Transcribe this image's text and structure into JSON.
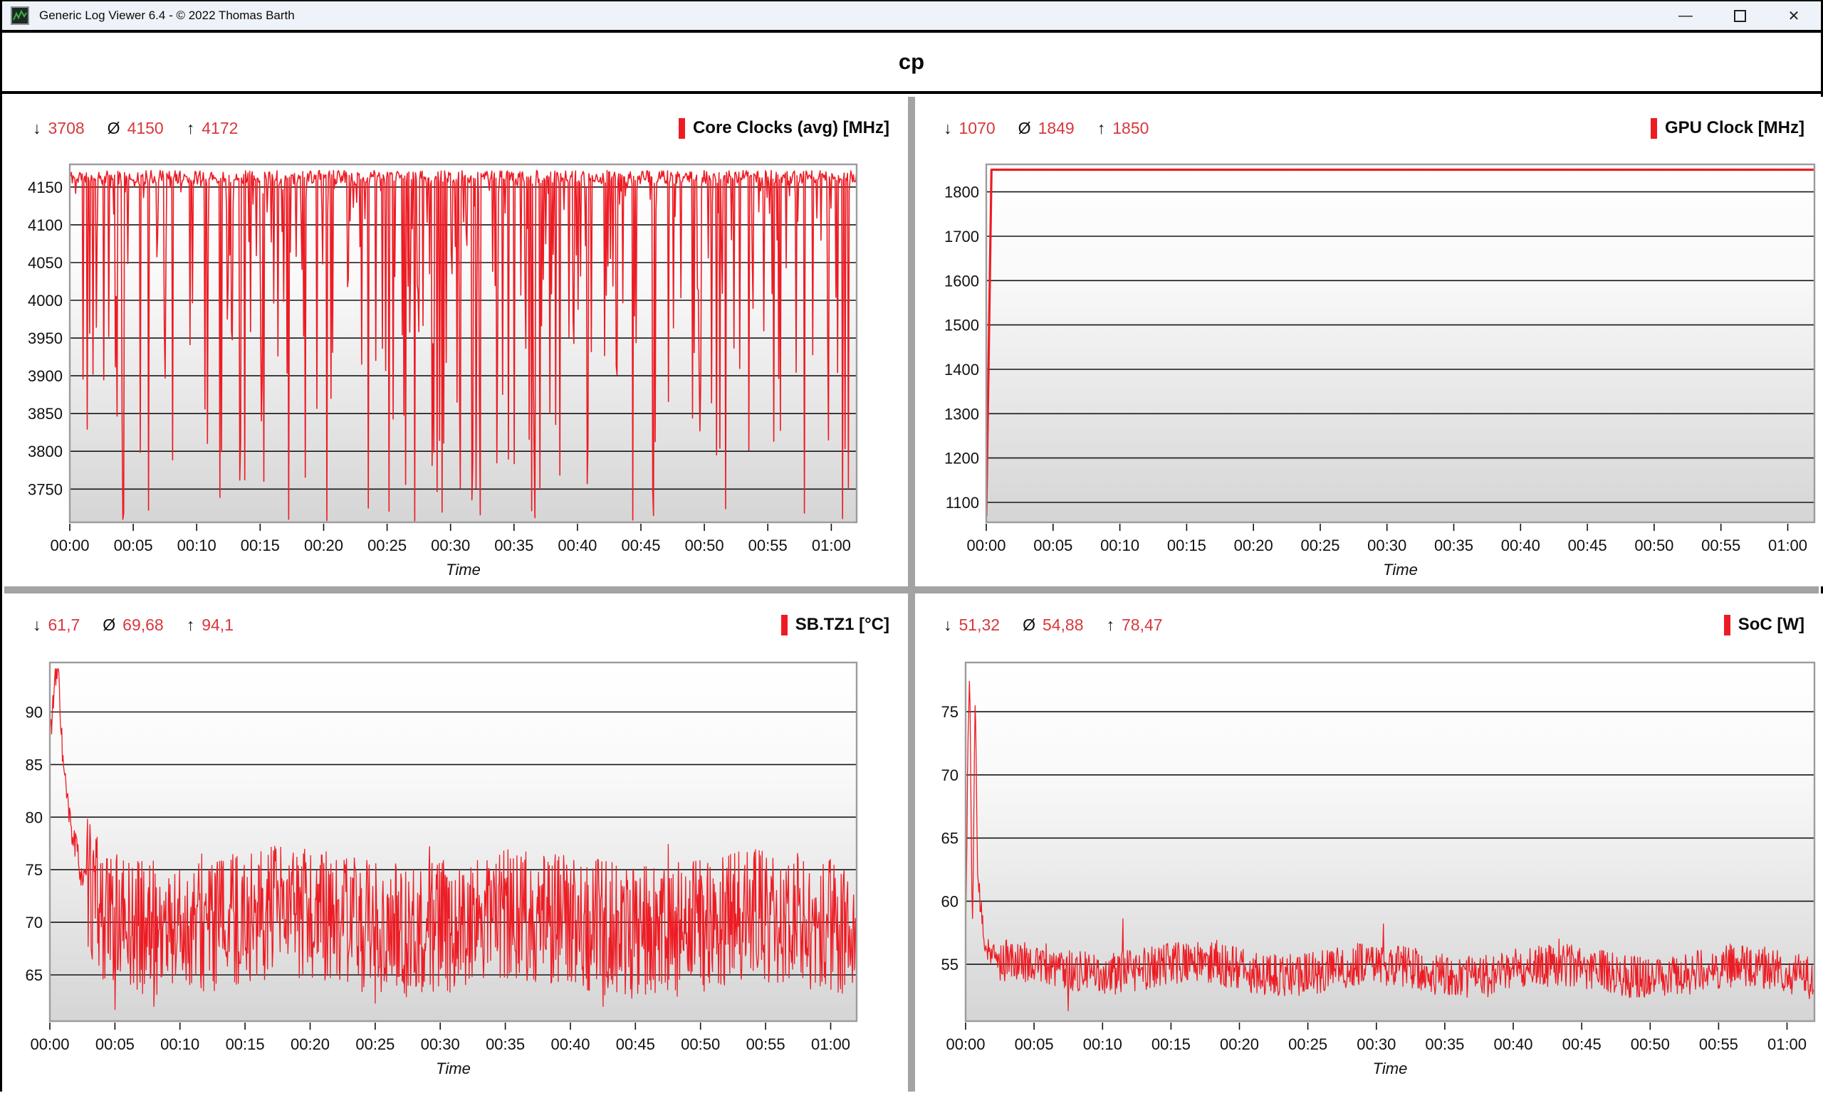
{
  "window": {
    "title": "Generic Log Viewer 6.4 - © 2022 Thomas Barth",
    "minimize_label": "—",
    "maximize_label": "□",
    "close_label": "✕"
  },
  "page_title": "cp",
  "stat_symbols": {
    "min": "↓",
    "avg": "Ø",
    "max": "↑"
  },
  "colors": {
    "series_red": "#ed1c24",
    "stats_red": "#d8383c",
    "grid_line": "#161616",
    "plot_border": "#9c9c9c",
    "plot_bg_top": "#ffffff",
    "plot_bg_bottom": "#d5d5d5",
    "panel_divider": "#a3a3a3",
    "titlebar_bg": "#eef3fa"
  },
  "x_axis": {
    "tick_labels": [
      "00:00",
      "00:05",
      "00:10",
      "00:15",
      "00:20",
      "00:25",
      "00:30",
      "00:35",
      "00:40",
      "00:45",
      "00:50",
      "00:55",
      "01:00"
    ],
    "title": "Time",
    "duration_s": 3720
  },
  "chart_data": [
    {
      "type": "line",
      "legend": "Core Clocks (avg) [MHz]",
      "stats": {
        "min": "3708",
        "avg": "4150",
        "max": "4172"
      },
      "y_ticks": [
        "4150",
        "4100",
        "4050",
        "4000",
        "3950",
        "3900",
        "3850",
        "3800",
        "3750"
      ],
      "ylim": [
        3706,
        4180
      ],
      "line_width": 1.6,
      "generator": {
        "seed": 11,
        "n": 950,
        "base": [
          [
            0,
            4163
          ],
          [
            3720,
            4163
          ]
        ],
        "noise": 9,
        "dips": {
          "prob": 0.3,
          "min": 3708,
          "max": 4162,
          "bias": 1.8
        },
        "events": [
          [
            255,
            3718
          ],
          [
            1035,
            3710
          ],
          [
            1630,
            3708
          ],
          [
            2200,
            3712
          ],
          [
            2660,
            3709
          ],
          [
            2760,
            3715
          ],
          [
            3100,
            3724
          ],
          [
            3655,
            3711
          ]
        ],
        "clamp": [
          3708,
          4172
        ]
      }
    },
    {
      "type": "line",
      "legend": "GPU Clock [MHz]",
      "stats": {
        "min": "1070",
        "avg": "1849",
        "max": "1850"
      },
      "y_ticks": [
        "1800",
        "1700",
        "1600",
        "1500",
        "1400",
        "1300",
        "1200",
        "1100"
      ],
      "ylim": [
        1055,
        1862
      ],
      "line_width": 3.2,
      "generator": {
        "seed": 2,
        "n": 160,
        "base": [
          [
            0,
            1070
          ],
          [
            5,
            1070
          ],
          [
            14,
            1850
          ],
          [
            3720,
            1850
          ]
        ],
        "noise": 0,
        "events": [],
        "clamp": [
          1070,
          1850
        ]
      }
    },
    {
      "type": "line",
      "legend": "SB.TZ1 [°C]",
      "stats": {
        "min": "61,7",
        "avg": "69,68",
        "max": "94,1"
      },
      "y_ticks": [
        "90",
        "85",
        "80",
        "75",
        "70",
        "65"
      ],
      "ylim": [
        60.6,
        94.7
      ],
      "line_width": 1.3,
      "generator": {
        "seed": 33,
        "n": 1350,
        "base": [
          [
            0,
            87
          ],
          [
            20,
            91
          ],
          [
            38,
            94.1
          ],
          [
            60,
            84.5
          ],
          [
            90,
            79
          ],
          [
            150,
            73.8
          ],
          [
            260,
            70.2
          ],
          [
            3720,
            69.7
          ]
        ],
        "noise": 6.4,
        "warmup": 170,
        "noise_early": 1.6,
        "wander": [
          0.8,
          1100
        ],
        "events": [
          [
            300,
            61.7
          ],
          [
            480,
            62.0
          ],
          [
            700,
            76.5
          ],
          [
            1500,
            62.3
          ],
          [
            1750,
            77.2
          ],
          [
            2550,
            62.0
          ],
          [
            2850,
            77.4
          ]
        ],
        "clamp": [
          61.7,
          94.1
        ]
      }
    },
    {
      "type": "line",
      "legend": "SoC [W]",
      "stats": {
        "min": "51,32",
        "avg": "54,88",
        "max": "78,47"
      },
      "y_ticks": [
        "75",
        "70",
        "65",
        "60",
        "55"
      ],
      "ylim": [
        50.5,
        78.9
      ],
      "line_width": 1.3,
      "generator": {
        "seed": 44,
        "n": 1350,
        "base": [
          [
            0,
            57.5
          ],
          [
            10,
            72
          ],
          [
            18,
            78.47
          ],
          [
            26,
            62
          ],
          [
            32,
            58.5
          ],
          [
            42,
            77.5
          ],
          [
            52,
            62
          ],
          [
            80,
            56.5
          ],
          [
            140,
            54.8
          ],
          [
            3720,
            54.3
          ]
        ],
        "noise": 1.7,
        "warmup": 150,
        "noise_early": 1.0,
        "wander": [
          0.5,
          800
        ],
        "events": [
          [
            450,
            51.32
          ],
          [
            690,
            58.6
          ],
          [
            1100,
            56.9
          ],
          [
            1830,
            58.2
          ],
          [
            2600,
            57.0
          ],
          [
            3350,
            56.6
          ]
        ],
        "clamp": [
          51.32,
          78.47
        ]
      }
    }
  ]
}
